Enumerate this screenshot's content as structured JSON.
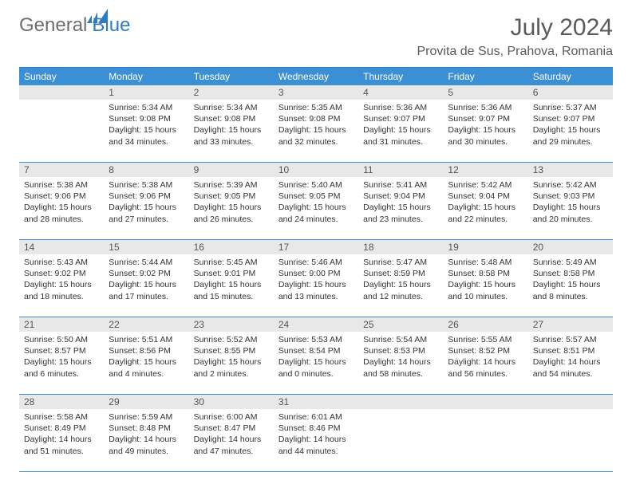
{
  "brand": {
    "part1": "General",
    "part2": "Blue"
  },
  "colors": {
    "header_bg": "#3b8fd4",
    "daynum_bg": "#e8e8e8",
    "border": "#3b8fd4",
    "brand_gray": "#6e6e6e",
    "brand_blue": "#2f7bbf",
    "text": "#333333"
  },
  "title": "July 2024",
  "location": "Provita de Sus, Prahova, Romania",
  "weekdays": [
    "Sunday",
    "Monday",
    "Tuesday",
    "Wednesday",
    "Thursday",
    "Friday",
    "Saturday"
  ],
  "weeks": [
    {
      "nums": [
        "",
        "1",
        "2",
        "3",
        "4",
        "5",
        "6"
      ],
      "cells": [
        {},
        {
          "sunrise": "Sunrise: 5:34 AM",
          "sunset": "Sunset: 9:08 PM",
          "dl1": "Daylight: 15 hours",
          "dl2": "and 34 minutes."
        },
        {
          "sunrise": "Sunrise: 5:34 AM",
          "sunset": "Sunset: 9:08 PM",
          "dl1": "Daylight: 15 hours",
          "dl2": "and 33 minutes."
        },
        {
          "sunrise": "Sunrise: 5:35 AM",
          "sunset": "Sunset: 9:08 PM",
          "dl1": "Daylight: 15 hours",
          "dl2": "and 32 minutes."
        },
        {
          "sunrise": "Sunrise: 5:36 AM",
          "sunset": "Sunset: 9:07 PM",
          "dl1": "Daylight: 15 hours",
          "dl2": "and 31 minutes."
        },
        {
          "sunrise": "Sunrise: 5:36 AM",
          "sunset": "Sunset: 9:07 PM",
          "dl1": "Daylight: 15 hours",
          "dl2": "and 30 minutes."
        },
        {
          "sunrise": "Sunrise: 5:37 AM",
          "sunset": "Sunset: 9:07 PM",
          "dl1": "Daylight: 15 hours",
          "dl2": "and 29 minutes."
        }
      ]
    },
    {
      "nums": [
        "7",
        "8",
        "9",
        "10",
        "11",
        "12",
        "13"
      ],
      "cells": [
        {
          "sunrise": "Sunrise: 5:38 AM",
          "sunset": "Sunset: 9:06 PM",
          "dl1": "Daylight: 15 hours",
          "dl2": "and 28 minutes."
        },
        {
          "sunrise": "Sunrise: 5:38 AM",
          "sunset": "Sunset: 9:06 PM",
          "dl1": "Daylight: 15 hours",
          "dl2": "and 27 minutes."
        },
        {
          "sunrise": "Sunrise: 5:39 AM",
          "sunset": "Sunset: 9:05 PM",
          "dl1": "Daylight: 15 hours",
          "dl2": "and 26 minutes."
        },
        {
          "sunrise": "Sunrise: 5:40 AM",
          "sunset": "Sunset: 9:05 PM",
          "dl1": "Daylight: 15 hours",
          "dl2": "and 24 minutes."
        },
        {
          "sunrise": "Sunrise: 5:41 AM",
          "sunset": "Sunset: 9:04 PM",
          "dl1": "Daylight: 15 hours",
          "dl2": "and 23 minutes."
        },
        {
          "sunrise": "Sunrise: 5:42 AM",
          "sunset": "Sunset: 9:04 PM",
          "dl1": "Daylight: 15 hours",
          "dl2": "and 22 minutes."
        },
        {
          "sunrise": "Sunrise: 5:42 AM",
          "sunset": "Sunset: 9:03 PM",
          "dl1": "Daylight: 15 hours",
          "dl2": "and 20 minutes."
        }
      ]
    },
    {
      "nums": [
        "14",
        "15",
        "16",
        "17",
        "18",
        "19",
        "20"
      ],
      "cells": [
        {
          "sunrise": "Sunrise: 5:43 AM",
          "sunset": "Sunset: 9:02 PM",
          "dl1": "Daylight: 15 hours",
          "dl2": "and 18 minutes."
        },
        {
          "sunrise": "Sunrise: 5:44 AM",
          "sunset": "Sunset: 9:02 PM",
          "dl1": "Daylight: 15 hours",
          "dl2": "and 17 minutes."
        },
        {
          "sunrise": "Sunrise: 5:45 AM",
          "sunset": "Sunset: 9:01 PM",
          "dl1": "Daylight: 15 hours",
          "dl2": "and 15 minutes."
        },
        {
          "sunrise": "Sunrise: 5:46 AM",
          "sunset": "Sunset: 9:00 PM",
          "dl1": "Daylight: 15 hours",
          "dl2": "and 13 minutes."
        },
        {
          "sunrise": "Sunrise: 5:47 AM",
          "sunset": "Sunset: 8:59 PM",
          "dl1": "Daylight: 15 hours",
          "dl2": "and 12 minutes."
        },
        {
          "sunrise": "Sunrise: 5:48 AM",
          "sunset": "Sunset: 8:58 PM",
          "dl1": "Daylight: 15 hours",
          "dl2": "and 10 minutes."
        },
        {
          "sunrise": "Sunrise: 5:49 AM",
          "sunset": "Sunset: 8:58 PM",
          "dl1": "Daylight: 15 hours",
          "dl2": "and 8 minutes."
        }
      ]
    },
    {
      "nums": [
        "21",
        "22",
        "23",
        "24",
        "25",
        "26",
        "27"
      ],
      "cells": [
        {
          "sunrise": "Sunrise: 5:50 AM",
          "sunset": "Sunset: 8:57 PM",
          "dl1": "Daylight: 15 hours",
          "dl2": "and 6 minutes."
        },
        {
          "sunrise": "Sunrise: 5:51 AM",
          "sunset": "Sunset: 8:56 PM",
          "dl1": "Daylight: 15 hours",
          "dl2": "and 4 minutes."
        },
        {
          "sunrise": "Sunrise: 5:52 AM",
          "sunset": "Sunset: 8:55 PM",
          "dl1": "Daylight: 15 hours",
          "dl2": "and 2 minutes."
        },
        {
          "sunrise": "Sunrise: 5:53 AM",
          "sunset": "Sunset: 8:54 PM",
          "dl1": "Daylight: 15 hours",
          "dl2": "and 0 minutes."
        },
        {
          "sunrise": "Sunrise: 5:54 AM",
          "sunset": "Sunset: 8:53 PM",
          "dl1": "Daylight: 14 hours",
          "dl2": "and 58 minutes."
        },
        {
          "sunrise": "Sunrise: 5:55 AM",
          "sunset": "Sunset: 8:52 PM",
          "dl1": "Daylight: 14 hours",
          "dl2": "and 56 minutes."
        },
        {
          "sunrise": "Sunrise: 5:57 AM",
          "sunset": "Sunset: 8:51 PM",
          "dl1": "Daylight: 14 hours",
          "dl2": "and 54 minutes."
        }
      ]
    },
    {
      "nums": [
        "28",
        "29",
        "30",
        "31",
        "",
        "",
        ""
      ],
      "cells": [
        {
          "sunrise": "Sunrise: 5:58 AM",
          "sunset": "Sunset: 8:49 PM",
          "dl1": "Daylight: 14 hours",
          "dl2": "and 51 minutes."
        },
        {
          "sunrise": "Sunrise: 5:59 AM",
          "sunset": "Sunset: 8:48 PM",
          "dl1": "Daylight: 14 hours",
          "dl2": "and 49 minutes."
        },
        {
          "sunrise": "Sunrise: 6:00 AM",
          "sunset": "Sunset: 8:47 PM",
          "dl1": "Daylight: 14 hours",
          "dl2": "and 47 minutes."
        },
        {
          "sunrise": "Sunrise: 6:01 AM",
          "sunset": "Sunset: 8:46 PM",
          "dl1": "Daylight: 14 hours",
          "dl2": "and 44 minutes."
        },
        {},
        {},
        {}
      ]
    }
  ]
}
